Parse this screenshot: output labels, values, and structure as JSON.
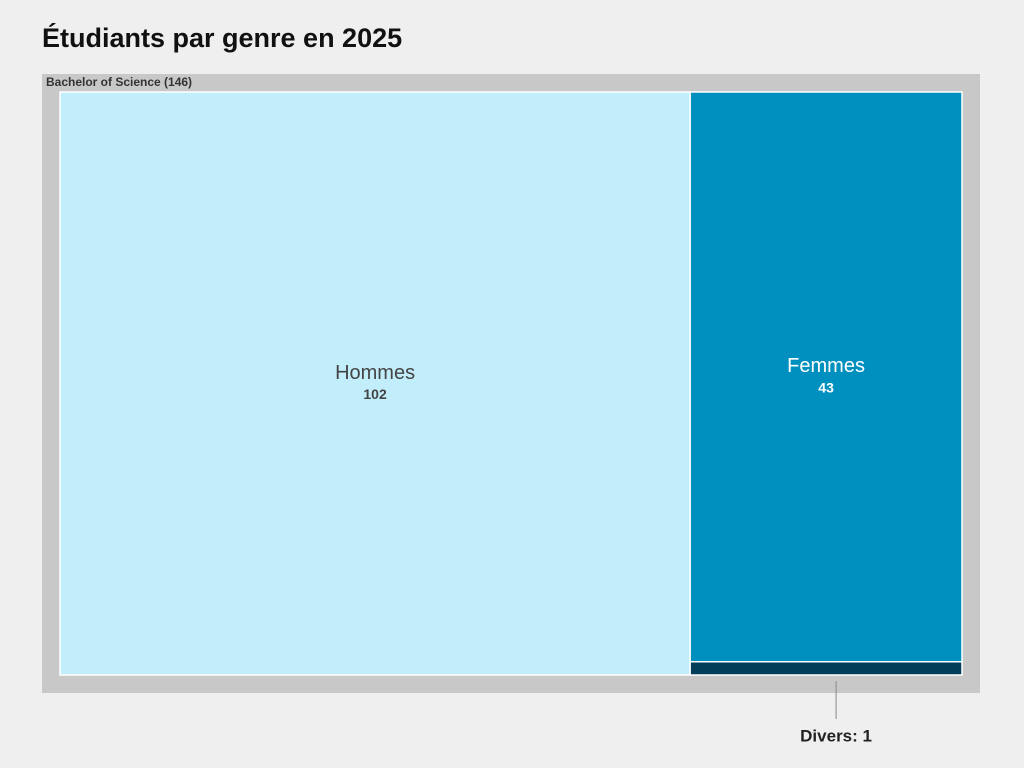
{
  "chart_data": {
    "type": "treemap",
    "title": "Étudiants par genre en 2025",
    "group": {
      "label": "Bachelor of Science (146)",
      "value": 146,
      "color": "#c8c8c8"
    },
    "categories": [
      "Hommes",
      "Femmes",
      null
    ],
    "values": [
      102,
      43,
      1
    ],
    "value_labels": [
      "102",
      "43",
      "Divers: 1"
    ],
    "colors": [
      "#c2eefc",
      "#0090c0",
      "#023e5a"
    ]
  }
}
